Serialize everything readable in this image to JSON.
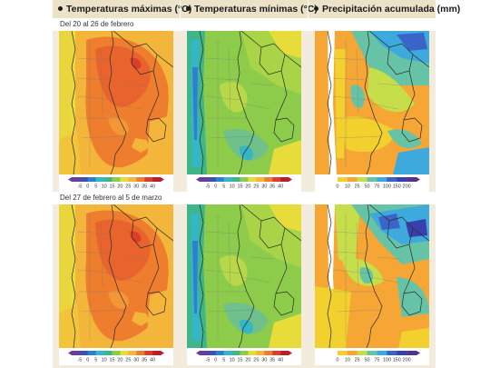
{
  "headers": [
    {
      "label": "Temperaturas máximas (°C)"
    },
    {
      "label": "Temperaturas mínimas (°C)"
    },
    {
      "label": "Precipitación acumulada (mm)"
    }
  ],
  "periods": [
    {
      "label": "Del 20 al 26 de febrero"
    },
    {
      "label": "Del 27 de febrero al 5 de marzo"
    }
  ],
  "temperature_scale": {
    "ticks": [
      "-5",
      "0",
      "5",
      "10",
      "15",
      "20",
      "25",
      "30",
      "35",
      "40"
    ],
    "colors": [
      "#6a3d9a",
      "#3f4fb0",
      "#2f7fd0",
      "#34b6c7",
      "#3fb58a",
      "#8ccc4a",
      "#e7dc3a",
      "#f4b63a",
      "#ee7d2e",
      "#dc3d2a",
      "#b81f2b"
    ]
  },
  "precip_scale": {
    "ticks": [
      "0",
      "10",
      "25",
      "50",
      "75",
      "100",
      "150",
      "200"
    ],
    "colors": [
      "#ffffff",
      "#f2d12e",
      "#f5a634",
      "#c7de4b",
      "#67c3a6",
      "#3da9dc",
      "#3a64c8",
      "#3a3fae",
      "#56328f"
    ]
  }
}
